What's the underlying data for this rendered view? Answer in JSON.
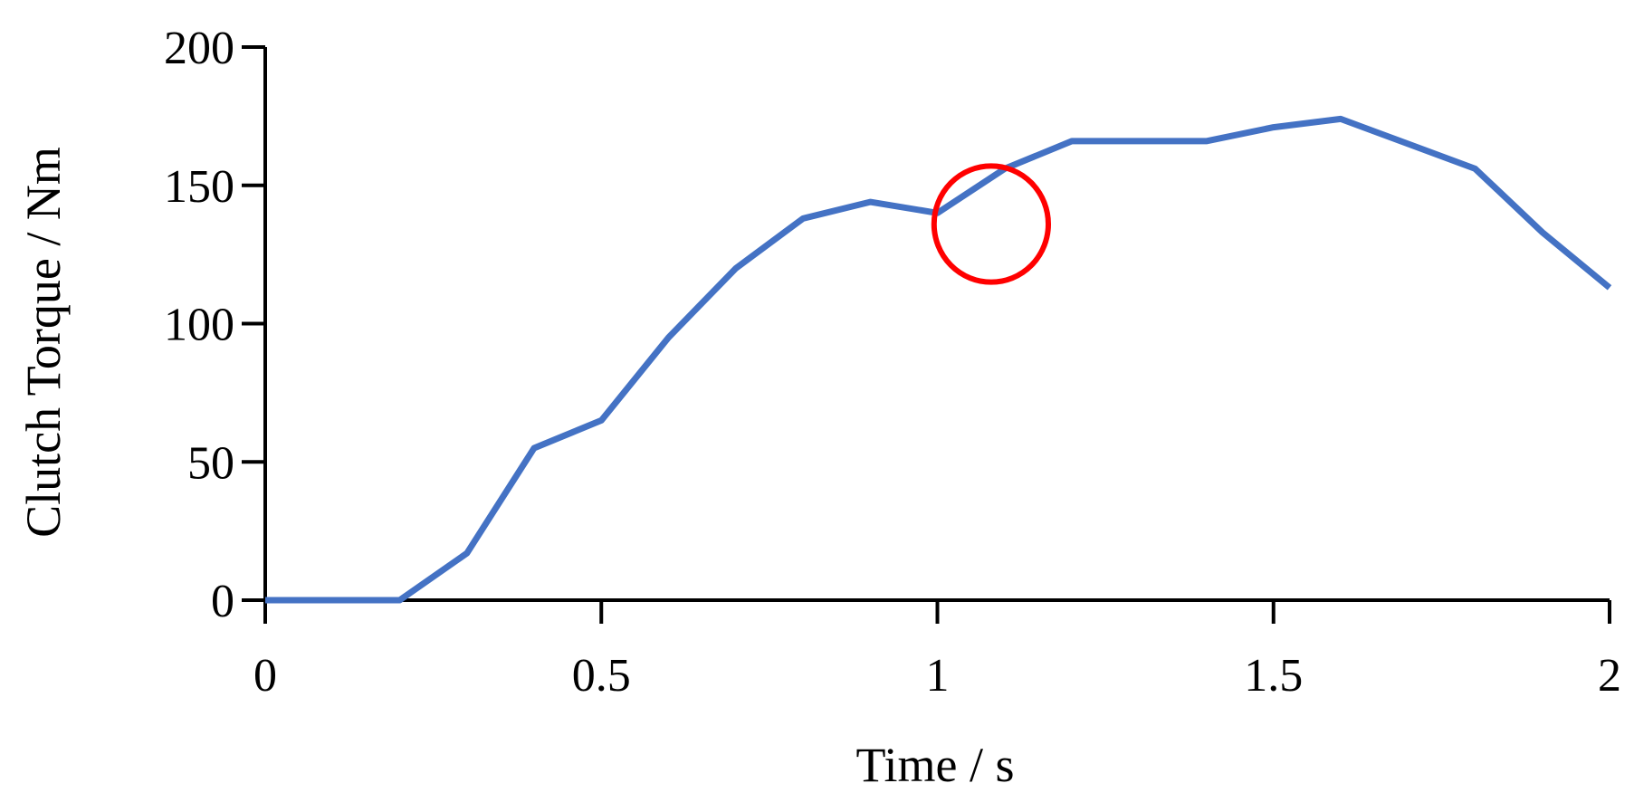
{
  "chart_data": {
    "type": "line",
    "title": "",
    "xlabel": "Time / s",
    "ylabel": "Clutch Torque / Nm",
    "xlim": [
      0,
      2
    ],
    "ylim": [
      0,
      200
    ],
    "x_ticks": [
      0,
      0.5,
      1,
      1.5,
      2
    ],
    "x_tick_labels": [
      "0",
      "0.5",
      "1",
      "1.5",
      "2"
    ],
    "y_ticks": [
      0,
      50,
      100,
      150,
      200
    ],
    "y_tick_labels": [
      "0",
      "50",
      "100",
      "150",
      "200"
    ],
    "grid": false,
    "legend": "none",
    "series": [
      {
        "color": "#4472C4",
        "x": [
          0,
          0.1,
          0.2,
          0.3,
          0.4,
          0.5,
          0.6,
          0.7,
          0.8,
          0.9,
          1.0,
          1.1,
          1.2,
          1.3,
          1.4,
          1.5,
          1.6,
          1.7,
          1.8,
          1.9,
          2.0
        ],
        "y": [
          0,
          0,
          0,
          17,
          55,
          65,
          95,
          120,
          138,
          144,
          140,
          156,
          166,
          166,
          166,
          171,
          174,
          165,
          156,
          133,
          113
        ]
      }
    ],
    "annotations": [
      {
        "type": "ellipse",
        "color": "#FF0000",
        "center": [
          1.08,
          136
        ],
        "radius_x": 0.085,
        "radius_y": 21
      }
    ]
  }
}
